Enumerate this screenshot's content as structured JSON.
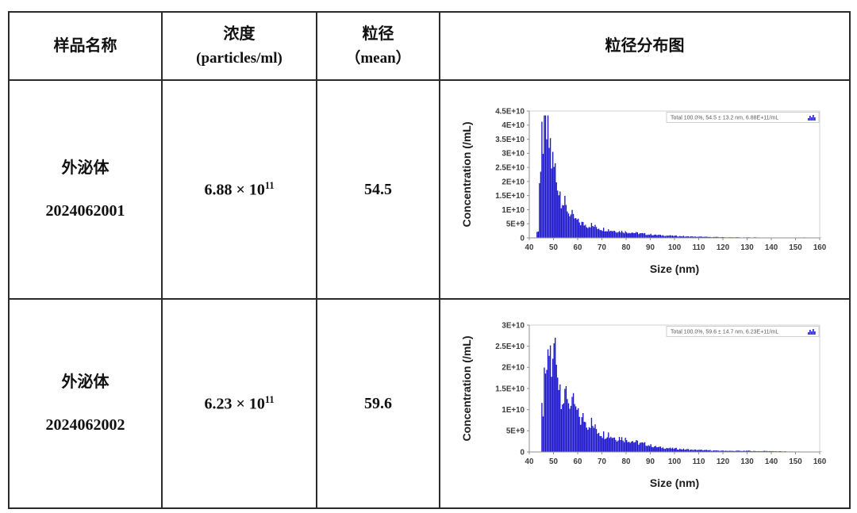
{
  "table": {
    "headers": {
      "sample": "样品名称",
      "concentration_line1": "浓度",
      "concentration_line2": "(particles/ml)",
      "size_line1": "粒径",
      "size_line2": "（mean）",
      "distribution": "粒径分布图"
    },
    "rows": [
      {
        "sample_line1": "外泌体",
        "sample_line2": "2024062001",
        "concentration_base": "6.88 × 10",
        "concentration_exp": "11",
        "mean": "54.5"
      },
      {
        "sample_line1": "外泌体",
        "sample_line2": "2024062002",
        "concentration_base": "6.23 × 10",
        "concentration_exp": "11",
        "mean": "59.6"
      }
    ]
  },
  "chart_data": [
    {
      "type": "bar",
      "title": "",
      "xlabel": "Size (nm)",
      "ylabel": "Concentration (/mL)",
      "legend": "Total  100.0%,  54.5 ± 13.2 nm,  6.88E+11/mL",
      "legend_position": "top-right",
      "grid": false,
      "bar_color": "#1c17cb",
      "xlim": [
        40,
        160
      ],
      "ylim": [
        0,
        45000000000.0
      ],
      "x_ticks": [
        40,
        50,
        60,
        70,
        80,
        90,
        100,
        110,
        120,
        130,
        140,
        150,
        160
      ],
      "y_tick_labels": [
        "0",
        "5E+9",
        "1E+10",
        "1.5E+10",
        "2E+10",
        "2.5E+10",
        "3E+10",
        "3.5E+10",
        "4E+10",
        "4.5E+10"
      ],
      "x_start": 40,
      "x_step": 1,
      "values": [
        0,
        0,
        0,
        2500000000.0,
        19000000000.0,
        35500000000.0,
        41500000000.0,
        36000000000.0,
        33000000000.0,
        27000000000.0,
        24500000000.0,
        20500000000.0,
        16500000000.0,
        14000000000.0,
        12000000000.0,
        10500000000.0,
        9000000000.0,
        8000000000.0,
        7000000000.0,
        6200000000.0,
        5600000000.0,
        5200000000.0,
        4900000000.0,
        4600000000.0,
        4300000000.0,
        4600000000.0,
        4100000000.0,
        3900000000.0,
        3600000000.0,
        3300000000.0,
        3100000000.0,
        3000000000.0,
        2900000000.0,
        2700000000.0,
        2600000000.0,
        2500000000.0,
        2400000000.0,
        2300000000.0,
        2300000000.0,
        2100000000.0,
        2000000000.0,
        2000000000.0,
        1900000000.0,
        1800000000.0,
        1700000000.0,
        1600000000.0,
        1500000000.0,
        1400000000.0,
        1300000000.0,
        1200000000.0,
        1200000000.0,
        1100000000.0,
        1000000000.0,
        1000000000.0,
        900000000.0,
        900000000.0,
        800000000.0,
        800000000.0,
        800000000.0,
        700000000.0,
        700000000.0,
        600000000.0,
        600000000.0,
        600000000.0,
        500000000.0,
        500000000.0,
        500000000.0,
        500000000.0,
        400000000.0,
        400000000.0,
        400000000.0,
        400000000.0,
        350000000.0,
        350000000.0,
        300000000.0,
        300000000.0,
        300000000.0,
        300000000.0,
        250000000.0,
        250000000.0,
        250000000.0,
        200000000.0,
        200000000.0,
        200000000.0,
        200000000.0,
        200000000.0,
        200000000.0,
        150000000.0,
        150000000.0,
        150000000.0,
        200000000.0,
        150000000.0,
        150000000.0,
        200000000.0,
        150000000.0,
        100000000.0,
        100000000.0,
        100000000.0,
        100000000.0,
        100000000.0,
        100000000.0,
        100000000.0,
        100000000.0,
        100000000.0,
        100000000.0,
        100000000.0,
        100000000.0,
        100000000.0,
        100000000.0,
        100000000.0,
        150000000.0,
        100000000.0,
        100000000.0,
        150000000.0,
        100000000.0,
        50000000.0,
        50000000.0,
        50000000.0,
        50000000.0,
        50000000.0,
        50000000.0
      ]
    },
    {
      "type": "bar",
      "title": "",
      "xlabel": "Size (nm)",
      "ylabel": "Concentration (/mL)",
      "legend": "Total  100.0%,  59.6 ± 14.7 nm,  6.23E+11/mL",
      "legend_position": "top-right",
      "grid": false,
      "bar_color": "#1c17cb",
      "xlim": [
        40,
        160
      ],
      "ylim": [
        0,
        30000000000.0
      ],
      "x_ticks": [
        40,
        50,
        60,
        70,
        80,
        90,
        100,
        110,
        120,
        130,
        140,
        150,
        160
      ],
      "y_tick_labels": [
        "0",
        "5E+9",
        "1E+10",
        "1.5E+10",
        "2E+10",
        "2.5E+10",
        "3E+10"
      ],
      "x_start": 40,
      "x_step": 1,
      "values": [
        0,
        0,
        0,
        0,
        0,
        10000000000.0,
        16000000000.0,
        20000000000.0,
        23500000000.0,
        19500000000.0,
        25000000000.0,
        21500000000.0,
        16000000000.0,
        13500000000.0,
        12000000000.0,
        14000000000.0,
        12000000000.0,
        10500000000.0,
        11500000000.0,
        9500000000.0,
        8500000000.0,
        7500000000.0,
        8000000000.0,
        7000000000.0,
        6500000000.0,
        7000000000.0,
        6000000000.0,
        5500000000.0,
        5000000000.0,
        4500000000.0,
        4200000000.0,
        4000000000.0,
        4400000000.0,
        3800000000.0,
        3600000000.0,
        3400000000.0,
        3200000000.0,
        3400000000.0,
        3200000000.0,
        3000000000.0,
        2900000000.0,
        2700000000.0,
        2600000000.0,
        2400000000.0,
        2300000000.0,
        2100000000.0,
        2000000000.0,
        1900000000.0,
        1800000000.0,
        1600000000.0,
        1500000000.0,
        1300000000.0,
        1200000000.0,
        1100000000.0,
        1050000000.0,
        1000000000.0,
        950000000.0,
        900000000.0,
        850000000.0,
        800000000.0,
        800000000.0,
        700000000.0,
        700000000.0,
        650000000.0,
        600000000.0,
        600000000.0,
        550000000.0,
        500000000.0,
        500000000.0,
        500000000.0,
        450000000.0,
        450000000.0,
        400000000.0,
        400000000.0,
        400000000.0,
        350000000.0,
        350000000.0,
        300000000.0,
        300000000.0,
        300000000.0,
        300000000.0,
        300000000.0,
        250000000.0,
        250000000.0,
        250000000.0,
        250000000.0,
        300000000.0,
        250000000.0,
        250000000.0,
        250000000.0,
        300000000.0,
        250000000.0,
        200000000.0,
        200000000.0,
        200000000.0,
        200000000.0,
        200000000.0,
        250000000.0,
        200000000.0,
        200000000.0,
        200000000.0,
        150000000.0,
        150000000.0,
        150000000.0,
        150000000.0,
        150000000.0,
        100000000.0,
        100000000.0,
        100000000.0,
        100000000.0,
        100000000.0,
        100000000.0,
        100000000.0,
        50000000.0,
        50000000.0,
        50000000.0,
        50000000.0,
        50000000.0,
        50000000.0,
        50000000.0,
        50000000.0
      ]
    }
  ]
}
